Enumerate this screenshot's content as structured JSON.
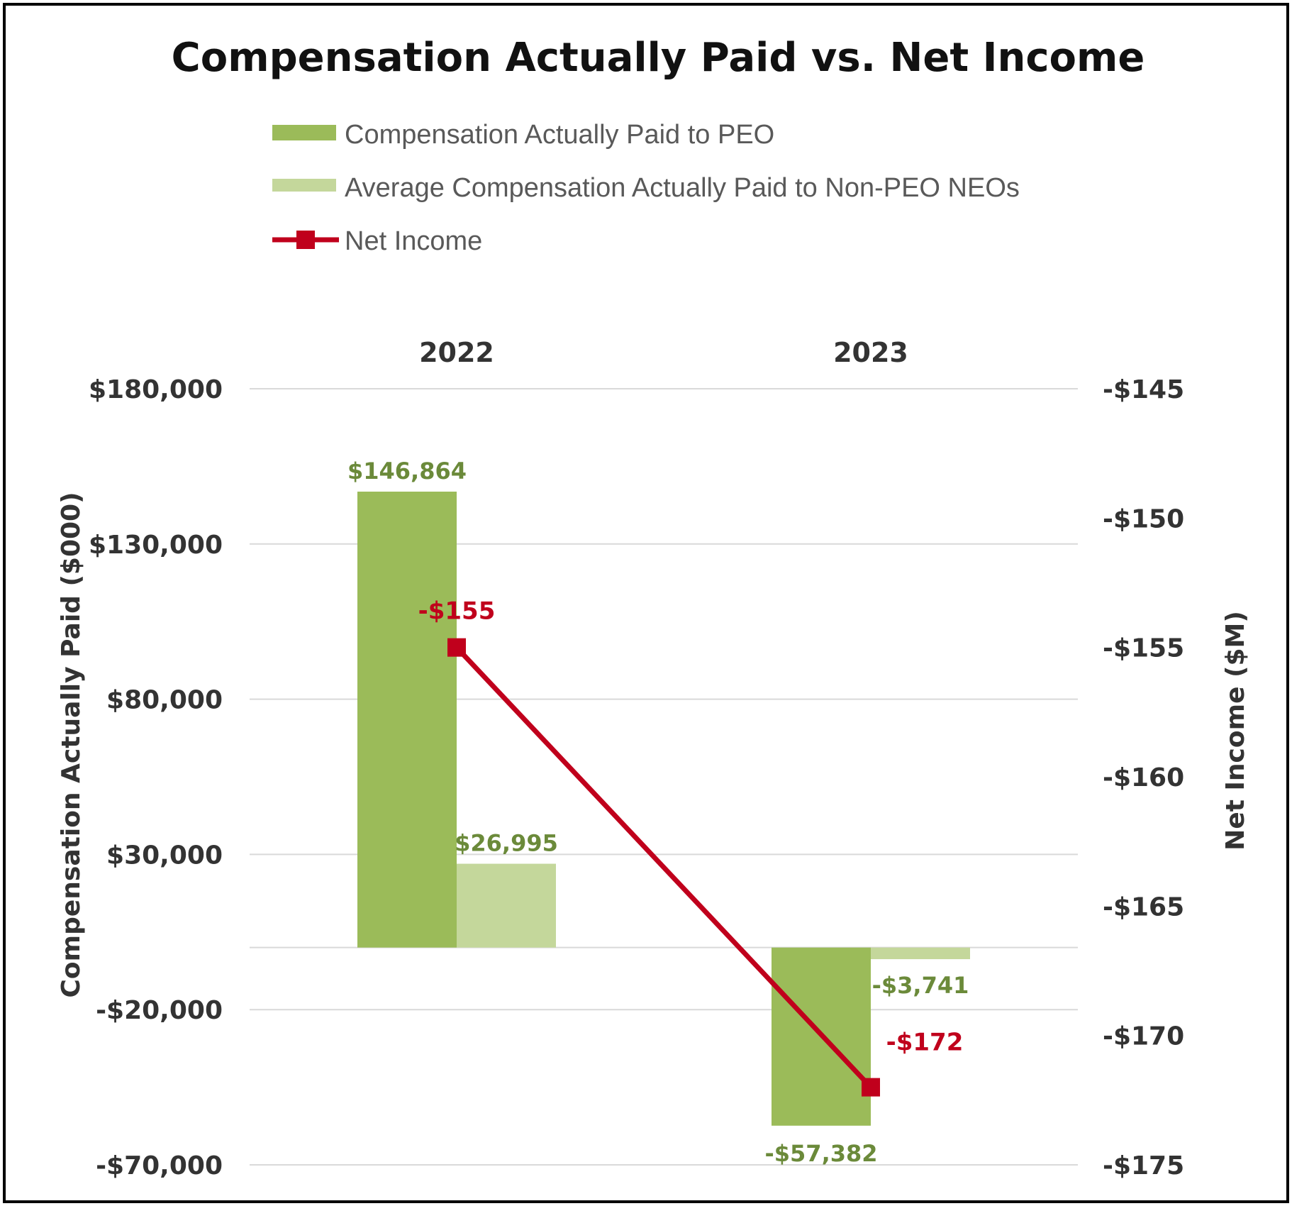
{
  "chart_data": {
    "type": "bar",
    "title": "Compensation Actually Paid vs. Net Income",
    "categories": [
      "2022",
      "2023"
    ],
    "series": [
      {
        "name": "Compensation Actually Paid to PEO",
        "type": "bar",
        "axis": "left",
        "color": "#9bbb59",
        "values": [
          146864,
          -57382
        ],
        "labels": [
          "$146,864",
          "-$57,382"
        ]
      },
      {
        "name": "Average Compensation Actually Paid to Non-PEO NEOs",
        "type": "bar",
        "axis": "left",
        "color": "#c4d79b",
        "values": [
          26995,
          -3741
        ],
        "labels": [
          "$26,995",
          "-$3,741"
        ]
      },
      {
        "name": "Net Income",
        "type": "line",
        "axis": "right",
        "color": "#c0001c",
        "values": [
          -155,
          -172
        ],
        "labels": [
          "-$155",
          "-$172"
        ]
      }
    ],
    "left_axis": {
      "title": "Compensation Actually Paid ($000)",
      "range": [
        -70000,
        180000
      ],
      "ticks": [
        180000,
        130000,
        80000,
        30000,
        -20000,
        -70000
      ],
      "tick_labels": [
        "$180,000",
        "$130,000",
        "$80,000",
        "$30,000",
        "-$20,000",
        "-$70,000"
      ]
    },
    "right_axis": {
      "title": "Net Income ($M)",
      "range": [
        -175,
        -145
      ],
      "ticks": [
        -145,
        -150,
        -155,
        -160,
        -165,
        -170,
        -175
      ],
      "tick_labels": [
        "-$145",
        "-$150",
        "-$155",
        "-$160",
        "-$165",
        "-$170",
        "-$175"
      ]
    },
    "grid": true,
    "legend_position": "top-left"
  }
}
